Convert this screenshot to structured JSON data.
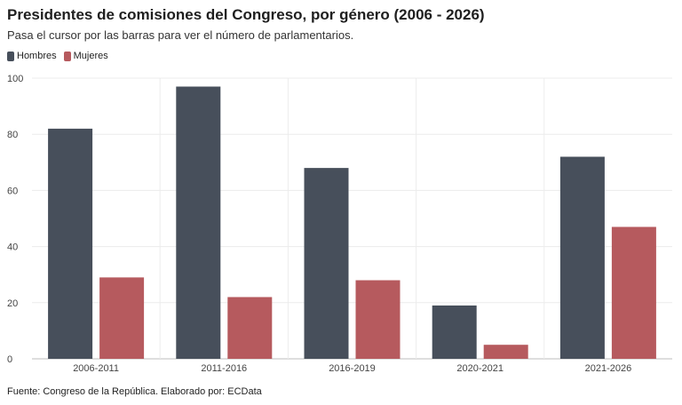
{
  "chart_data": {
    "type": "bar",
    "title": "Presidentes de comisiones del Congreso, por género (2006 - 2026)",
    "subtitle": "Pasa el cursor por las barras para ver el número de parlamentarios.",
    "categories": [
      "2006-2011",
      "2011-2016",
      "2016-2019",
      "2020-2021",
      "2021-2026"
    ],
    "series": [
      {
        "name": "Hombres",
        "color": "#474f5b",
        "values": [
          82,
          97,
          68,
          19,
          72
        ]
      },
      {
        "name": "Mujeres",
        "color": "#b65a5e",
        "values": [
          29,
          22,
          28,
          5,
          47
        ]
      }
    ],
    "ylim": [
      0,
      100
    ],
    "yticks": [
      "0",
      "20",
      "40",
      "60",
      "80",
      "100"
    ],
    "grid": true,
    "legend_position": "top-left"
  },
  "footer": {
    "source": "Fuente: Congreso de la República. Elaborado por: ECData"
  }
}
